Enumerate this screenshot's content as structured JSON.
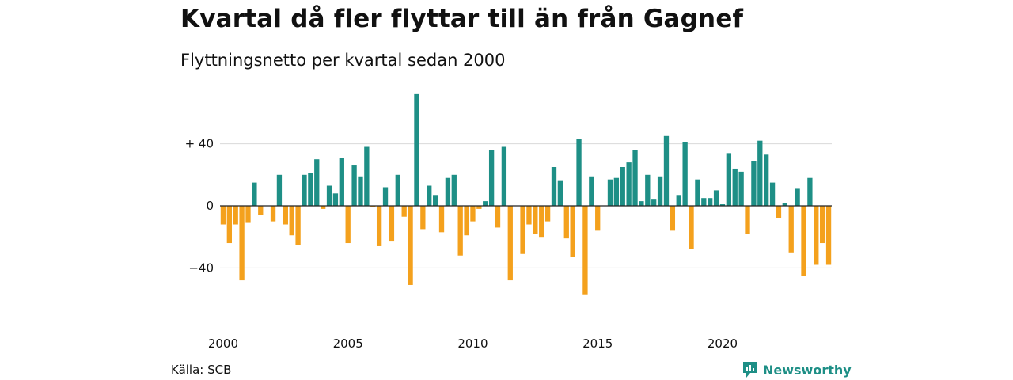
{
  "title": "Kvartal då fler flyttar till än från Gagnef",
  "subtitle": "Flyttningsnetto per kvartal sedan 2000",
  "source": "Källa: SCB",
  "brand": {
    "name": "Newsworthy",
    "icon": "newsworthy-logo-icon"
  },
  "colors": {
    "positive": "#1e8f86",
    "negative": "#f4a11d",
    "grid": "#d9d9d9",
    "zero": "#222222"
  },
  "chart_data": {
    "type": "bar",
    "title": "Kvartal då fler flyttar till än från Gagnef",
    "subtitle": "Flyttningsnetto per kvartal sedan 2000",
    "ylim": [
      -60,
      72
    ],
    "y_ticks": [
      {
        "value": 40,
        "label": "+ 40"
      },
      {
        "value": 0,
        "label": "0"
      },
      {
        "value": -40,
        "label": "−40"
      }
    ],
    "x_ticks": [
      "2000",
      "2005",
      "2010",
      "2015",
      "2020"
    ],
    "grid": true,
    "first_period": "2000 Q1",
    "quarters": [
      "2000 Q1",
      "2000 Q2",
      "2000 Q3",
      "2000 Q4",
      "2001 Q1",
      "2001 Q2",
      "2001 Q3",
      "2001 Q4",
      "2002 Q1",
      "2002 Q2",
      "2002 Q3",
      "2002 Q4",
      "2003 Q1",
      "2003 Q2",
      "2003 Q3",
      "2003 Q4",
      "2004 Q1",
      "2004 Q2",
      "2004 Q3",
      "2004 Q4",
      "2005 Q1",
      "2005 Q2",
      "2005 Q3",
      "2005 Q4",
      "2006 Q1",
      "2006 Q2",
      "2006 Q3",
      "2006 Q4",
      "2007 Q1",
      "2007 Q2",
      "2007 Q3",
      "2007 Q4",
      "2008 Q1",
      "2008 Q2",
      "2008 Q3",
      "2008 Q4",
      "2009 Q1",
      "2009 Q2",
      "2009 Q3",
      "2009 Q4",
      "2010 Q1",
      "2010 Q2",
      "2010 Q3",
      "2010 Q4",
      "2011 Q1",
      "2011 Q2",
      "2011 Q3",
      "2011 Q4",
      "2012 Q1",
      "2012 Q2",
      "2012 Q3",
      "2012 Q4",
      "2013 Q1",
      "2013 Q2",
      "2013 Q3",
      "2013 Q4",
      "2014 Q1",
      "2014 Q2",
      "2014 Q3",
      "2014 Q4",
      "2015 Q1",
      "2015 Q2",
      "2015 Q3",
      "2015 Q4",
      "2016 Q1",
      "2016 Q2",
      "2016 Q3",
      "2016 Q4",
      "2017 Q1",
      "2017 Q2",
      "2017 Q3",
      "2017 Q4",
      "2018 Q1",
      "2018 Q2",
      "2018 Q3",
      "2018 Q4",
      "2019 Q1",
      "2019 Q2",
      "2019 Q3",
      "2019 Q4",
      "2020 Q1",
      "2020 Q2",
      "2020 Q3",
      "2020 Q4",
      "2021 Q1",
      "2021 Q2",
      "2021 Q3",
      "2021 Q4",
      "2022 Q1",
      "2022 Q2",
      "2022 Q3",
      "2022 Q4",
      "2023 Q1",
      "2023 Q2",
      "2023 Q3",
      "2023 Q4",
      "2024 Q1",
      "2024 Q2"
    ],
    "values": [
      -12,
      -24,
      -12,
      -48,
      -11,
      15,
      -6,
      0,
      -10,
      20,
      -12,
      -19,
      -25,
      20,
      21,
      30,
      -2,
      13,
      8,
      31,
      -24,
      26,
      19,
      38,
      -1,
      -26,
      12,
      -23,
      20,
      -7,
      -51,
      72,
      -15,
      13,
      7,
      -17,
      18,
      20,
      -32,
      -19,
      -10,
      -2,
      3,
      36,
      -14,
      38,
      -48,
      0,
      -31,
      -12,
      -18,
      -20,
      -10,
      25,
      16,
      -21,
      -33,
      43,
      -57,
      19,
      -16,
      0,
      17,
      18,
      25,
      28,
      36,
      3,
      20,
      4,
      19,
      45,
      -16,
      7,
      41,
      -28,
      17,
      5,
      5,
      10,
      1,
      34,
      24,
      22,
      -18,
      29,
      42,
      33,
      15,
      -8,
      2,
      -30,
      11,
      -45,
      18,
      -38,
      -24,
      -38
    ]
  }
}
